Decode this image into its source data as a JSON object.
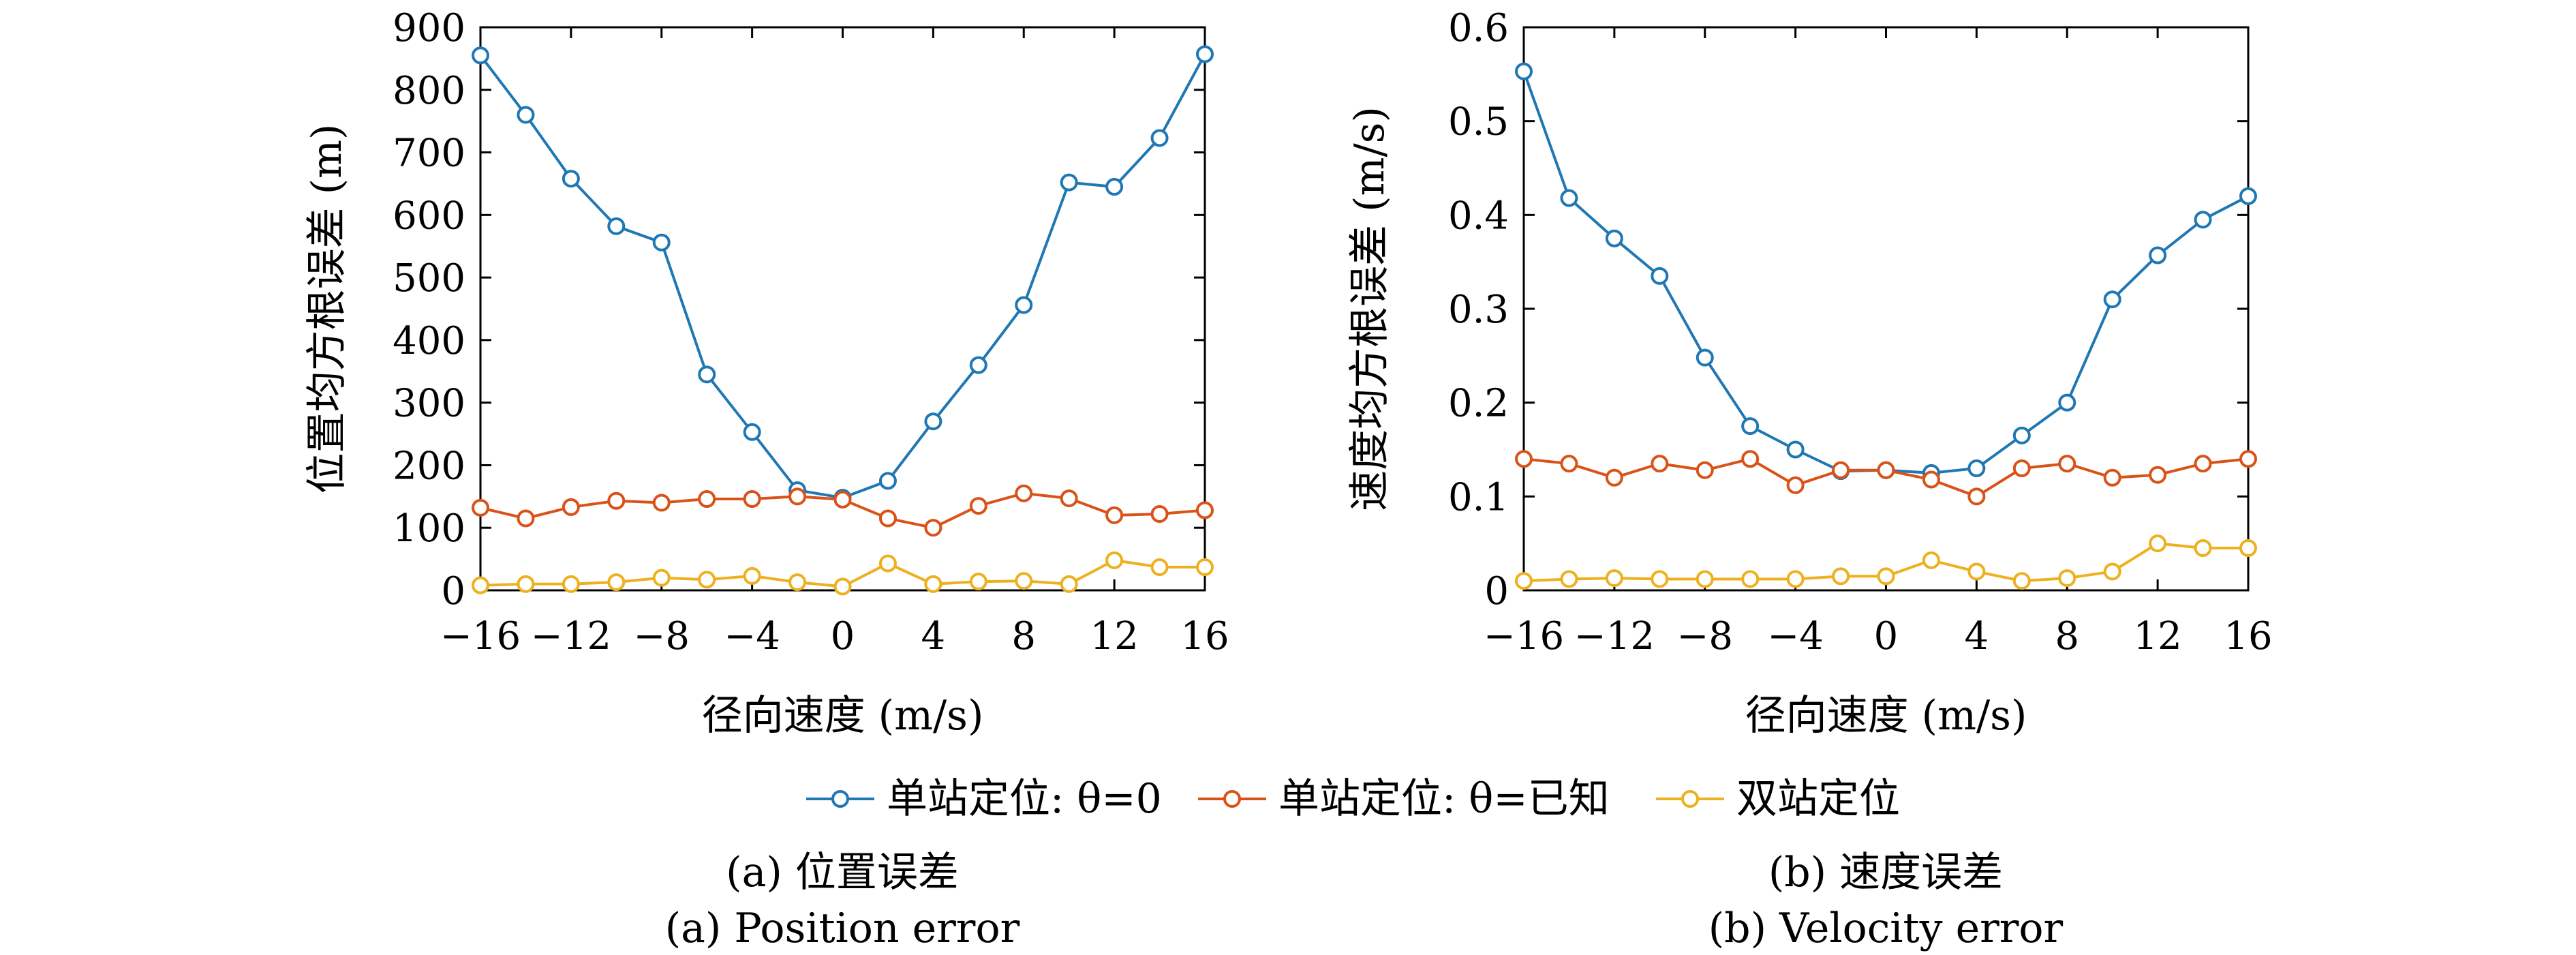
{
  "colors": {
    "s1": "#1f77b4",
    "s2": "#d95319",
    "s3": "#edb120"
  },
  "legend": [
    {
      "key": "s1",
      "label": "单站定位: θ=0"
    },
    {
      "key": "s2",
      "label": "单站定位: θ=已知"
    },
    {
      "key": "s3",
      "label": "双站定位"
    }
  ],
  "chart_data": [
    {
      "type": "line",
      "xlabel": "径向速度 (m/s)",
      "ylabel": "位置均方根误差 (m)",
      "xlim": [
        -16,
        16
      ],
      "ylim": [
        0,
        900
      ],
      "xticks": [
        -16,
        -12,
        -8,
        -4,
        0,
        4,
        8,
        12,
        16
      ],
      "xtick_labels": [
        "−16",
        "−12",
        "−8",
        "−4",
        "0",
        "4",
        "8",
        "12",
        "16"
      ],
      "yticks": [
        0,
        100,
        200,
        300,
        400,
        500,
        600,
        700,
        800,
        900
      ],
      "ytick_labels": [
        "0",
        "100",
        "200",
        "300",
        "400",
        "500",
        "600",
        "700",
        "800",
        "900"
      ],
      "x": [
        -16,
        -14,
        -12,
        -10,
        -8,
        -6,
        -4,
        -2,
        0,
        2,
        4,
        6,
        8,
        10,
        12,
        14,
        16
      ],
      "series": [
        {
          "key": "s1",
          "name": "单站定位: θ=0",
          "values": [
            855,
            760,
            658,
            582,
            556,
            345,
            253,
            160,
            148,
            175,
            270,
            360,
            456,
            652,
            645,
            723,
            857
          ]
        },
        {
          "key": "s2",
          "name": "单站定位: θ=已知",
          "values": [
            132,
            115,
            133,
            143,
            140,
            146,
            146,
            150,
            145,
            115,
            100,
            135,
            155,
            147,
            120,
            122,
            128
          ]
        },
        {
          "key": "s3",
          "name": "双站定位",
          "values": [
            8,
            10,
            10,
            13,
            20,
            17,
            23,
            13,
            6,
            43,
            10,
            14,
            15,
            10,
            48,
            37,
            37
          ]
        }
      ],
      "caption_zh": "(a) 位置误差",
      "caption_en": "(a) Position error"
    },
    {
      "type": "line",
      "xlabel": "径向速度 (m/s)",
      "ylabel": "速度均方根误差 (m/s)",
      "xlim": [
        -16,
        16
      ],
      "ylim": [
        0,
        0.6
      ],
      "xticks": [
        -16,
        -12,
        -8,
        -4,
        0,
        4,
        8,
        12,
        16
      ],
      "xtick_labels": [
        "−16",
        "−12",
        "−8",
        "−4",
        "0",
        "4",
        "8",
        "12",
        "16"
      ],
      "yticks": [
        0,
        0.1,
        0.2,
        0.3,
        0.4,
        0.5,
        0.6
      ],
      "ytick_labels": [
        "0",
        "0.1",
        "0.2",
        "0.3",
        "0.4",
        "0.5",
        "0.6"
      ],
      "x": [
        -16,
        -14,
        -12,
        -10,
        -8,
        -6,
        -4,
        -2,
        0,
        2,
        4,
        6,
        8,
        10,
        12,
        14,
        16
      ],
      "series": [
        {
          "key": "s1",
          "name": "单站定位: θ=0",
          "values": [
            0.553,
            0.418,
            0.375,
            0.335,
            0.248,
            0.175,
            0.15,
            0.127,
            0.128,
            0.125,
            0.13,
            0.165,
            0.2,
            0.31,
            0.357,
            0.395,
            0.42
          ]
        },
        {
          "key": "s2",
          "name": "单站定位: θ=已知",
          "values": [
            0.14,
            0.135,
            0.12,
            0.135,
            0.128,
            0.14,
            0.112,
            0.128,
            0.128,
            0.118,
            0.1,
            0.13,
            0.135,
            0.12,
            0.123,
            0.135,
            0.14
          ]
        },
        {
          "key": "s3",
          "name": "双站定位",
          "values": [
            0.01,
            0.012,
            0.013,
            0.012,
            0.012,
            0.012,
            0.012,
            0.015,
            0.015,
            0.032,
            0.02,
            0.01,
            0.013,
            0.02,
            0.05,
            0.045,
            0.045
          ]
        }
      ],
      "caption_zh": "(b) 速度误差",
      "caption_en": "(b) Velocity error"
    }
  ]
}
